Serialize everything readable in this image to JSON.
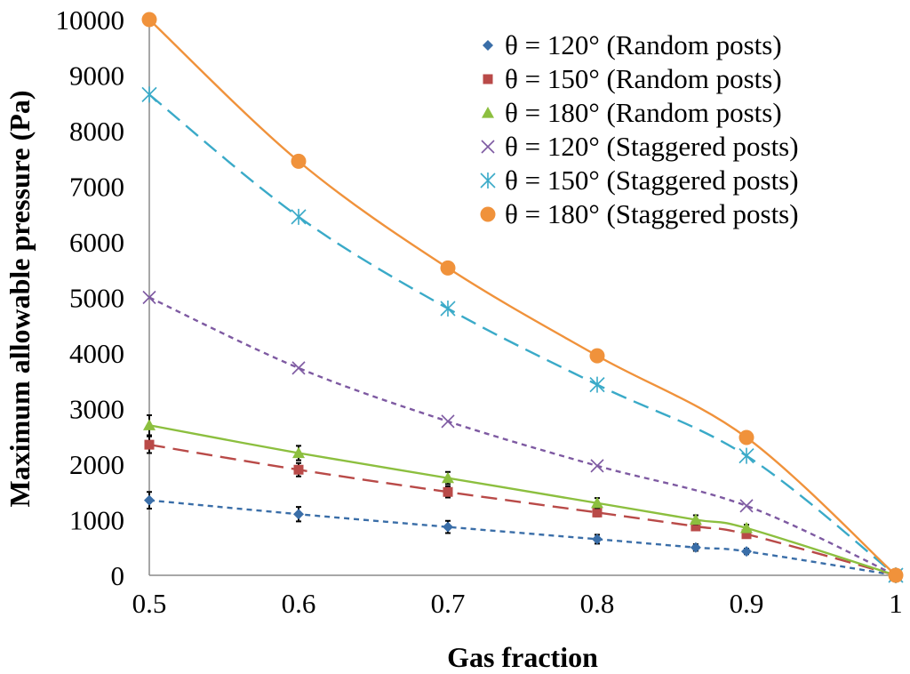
{
  "chart_data": {
    "type": "scatter",
    "title": "",
    "xlabel": "Gas fraction",
    "ylabel": "Maximum allowable pressure (Pa)",
    "xlim": [
      0.5,
      1
    ],
    "ylim": [
      0,
      10000
    ],
    "x_ticks": [
      "0.5",
      "0.6",
      "0.7",
      "0.8",
      "0.9",
      "1"
    ],
    "y_ticks": [
      "0",
      "1000",
      "2000",
      "3000",
      "4000",
      "5000",
      "6000",
      "7000",
      "8000",
      "9000",
      "10000"
    ],
    "grid": false,
    "legend_position": "top-right",
    "series": [
      {
        "name": "θ = 120° (Random posts)",
        "marker": "diamond",
        "color": "#3A6EA8",
        "line_style": "short-dash",
        "x": [
          0.5,
          0.6,
          0.7,
          0.8,
          0.866,
          0.9,
          1.0
        ],
        "y": [
          1350,
          1100,
          870,
          650,
          500,
          430,
          0
        ],
        "error": [
          150,
          130,
          110,
          80,
          60,
          50,
          0
        ]
      },
      {
        "name": "θ = 150° (Random posts)",
        "marker": "square",
        "color": "#B94A48",
        "line_style": "long-dash",
        "x": [
          0.5,
          0.6,
          0.7,
          0.8,
          0.866,
          0.9,
          1.0
        ],
        "y": [
          2350,
          1900,
          1500,
          1130,
          880,
          740,
          0
        ],
        "error": [
          150,
          120,
          100,
          70,
          70,
          50,
          0
        ]
      },
      {
        "name": "θ = 180° (Random posts)",
        "marker": "triangle",
        "color": "#8CBF3F",
        "line_style": "solid",
        "x": [
          0.5,
          0.6,
          0.7,
          0.8,
          0.866,
          0.9,
          1.0
        ],
        "y": [
          2700,
          2200,
          1750,
          1300,
          1000,
          850,
          0
        ],
        "error": [
          180,
          130,
          110,
          90,
          80,
          60,
          0
        ]
      },
      {
        "name": "θ = 120° (Staggered posts)",
        "marker": "x",
        "color": "#7E5AA2",
        "line_style": "short-dash",
        "x": [
          0.5,
          0.6,
          0.7,
          0.8,
          0.9,
          1.0
        ],
        "y": [
          5000,
          3730,
          2770,
          1970,
          1250,
          0
        ]
      },
      {
        "name": "θ = 150° (Staggered posts)",
        "marker": "asterisk",
        "color": "#3AAAC8",
        "line_style": "long-dash",
        "x": [
          0.5,
          0.6,
          0.7,
          0.8,
          0.9,
          1.0
        ],
        "y": [
          8650,
          6450,
          4800,
          3430,
          2150,
          0
        ]
      },
      {
        "name": "θ = 180° (Staggered posts)",
        "marker": "circle",
        "color": "#F0923B",
        "line_style": "solid",
        "x": [
          0.5,
          0.6,
          0.7,
          0.8,
          0.9,
          1.0
        ],
        "y": [
          10000,
          7450,
          5530,
          3950,
          2480,
          0
        ]
      }
    ]
  }
}
